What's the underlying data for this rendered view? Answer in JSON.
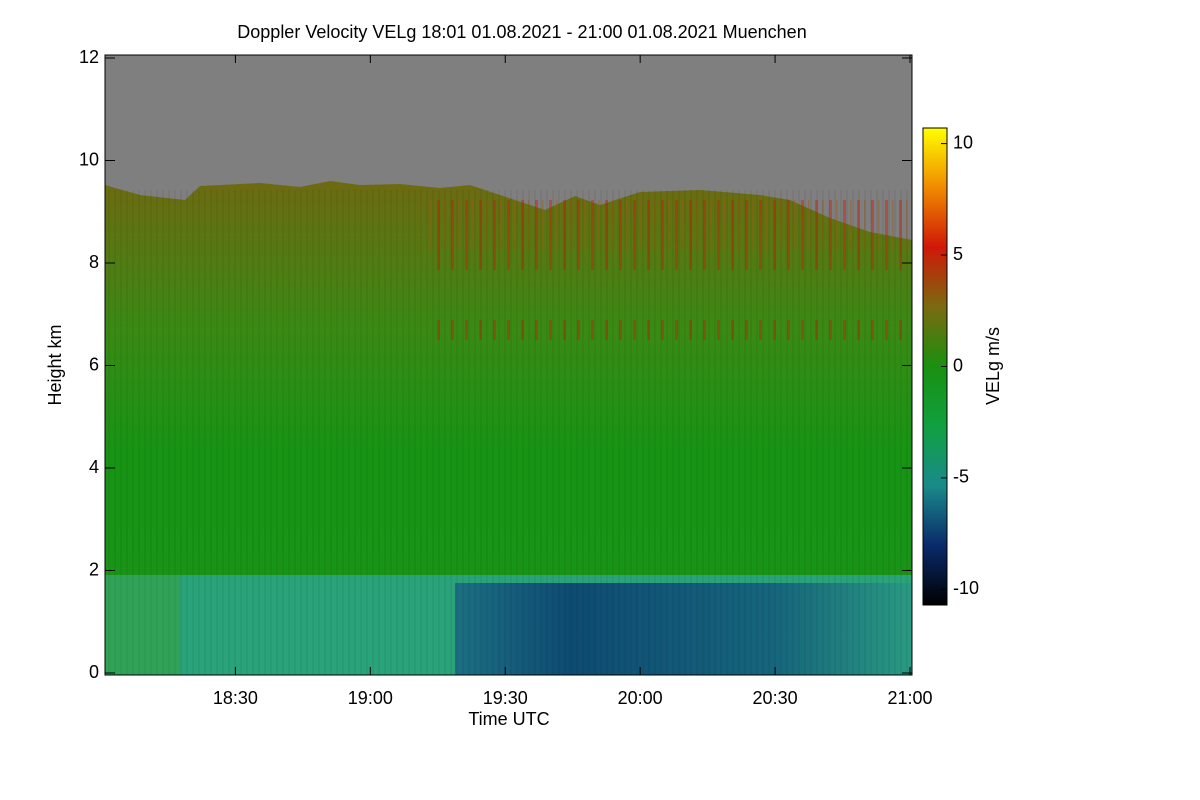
{
  "chart_data": {
    "type": "heatmap",
    "title": "Doppler Velocity VELg   18:01 01.08.2021 - 21:00 01.08.2021 Muenchen",
    "x_label": "Time UTC",
    "y_label": "Height km",
    "xlim": [
      1081,
      1260
    ],
    "xticks": [
      {
        "value": 1110,
        "label": "18:30"
      },
      {
        "value": 1140,
        "label": "19:00"
      },
      {
        "value": 1170,
        "label": "19:30"
      },
      {
        "value": 1200,
        "label": "20:00"
      },
      {
        "value": 1230,
        "label": "20:30"
      },
      {
        "value": 1260,
        "label": "21:00"
      }
    ],
    "ylim": [
      0,
      12
    ],
    "yticks": [
      0,
      2,
      4,
      6,
      8,
      10,
      12
    ],
    "colorbar": {
      "label": "VELg m/s",
      "clim": [
        -10.7,
        10.7
      ],
      "ticks": [
        10,
        5,
        0,
        -5,
        -10
      ],
      "colors": [
        "#000000",
        "#0a2a6a",
        "#1a8a8a",
        "#10a040",
        "#1a9010",
        "#7a6a10",
        "#d01808",
        "#f08a00",
        "#ffff00"
      ]
    }
  }
}
